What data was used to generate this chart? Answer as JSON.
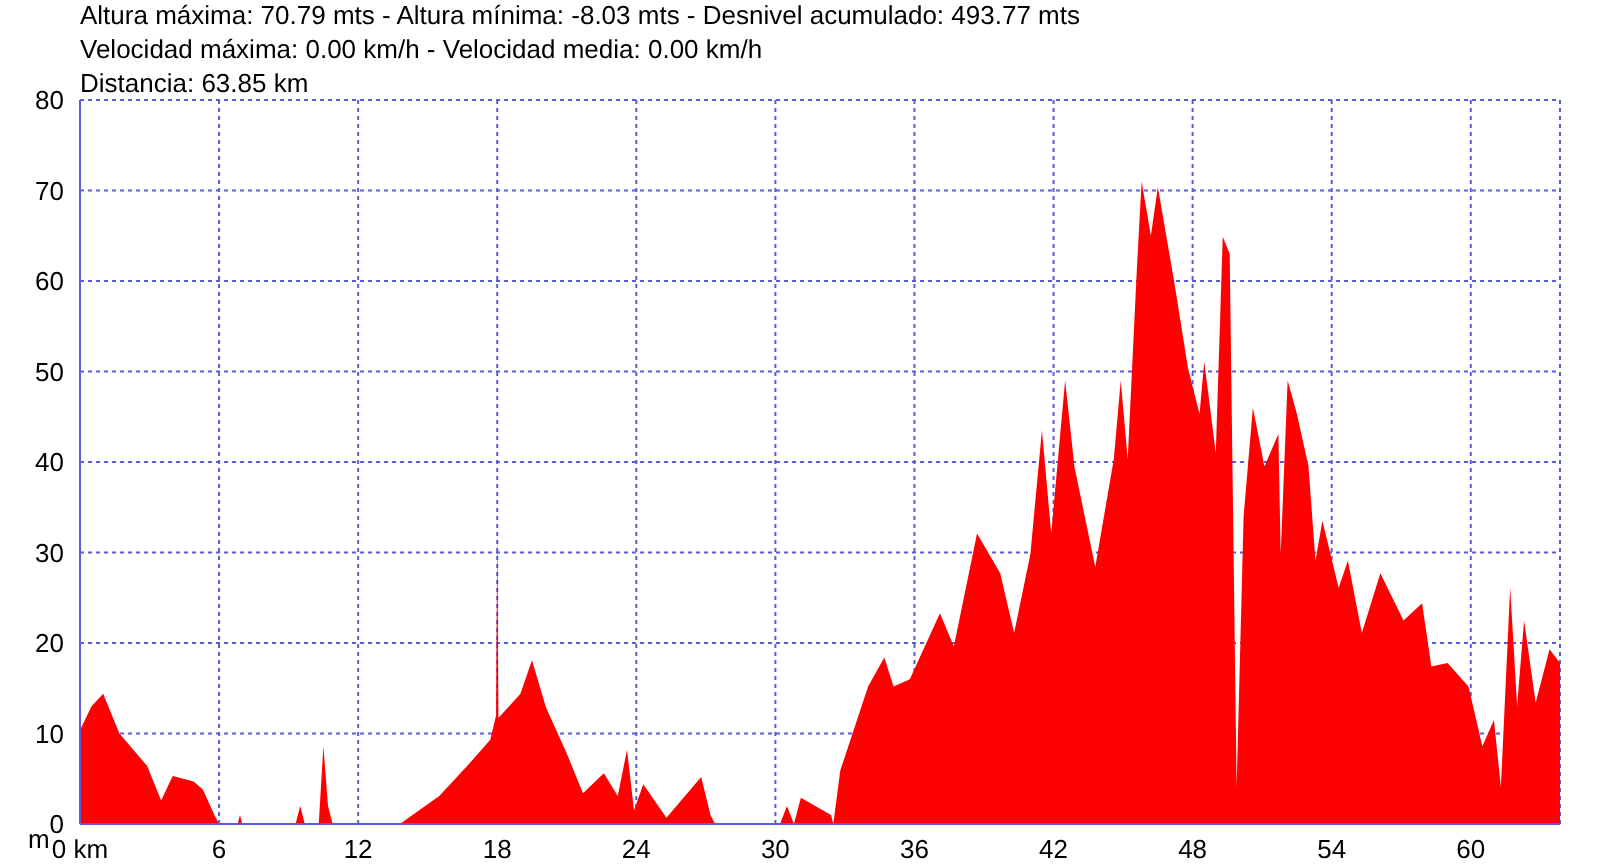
{
  "chart_data": {
    "type": "area",
    "title": "Altura máxima: 70.79 mts - Altura mínima: -8.03 mts - Desnivel acumulado: 493.77 mts",
    "subtitle": "Velocidad máxima: 0.00 km/h - Velocidad media: 0.00 km/h",
    "annotations": [
      "Distancia: 63.85 km"
    ],
    "ylabel": "m",
    "x": [
      0,
      0.5,
      1.0,
      1.7,
      2.9,
      3.5,
      4.0,
      4.9,
      5.3,
      5.8,
      6.0,
      6.8,
      6.9,
      7.0,
      9.3,
      9.5,
      9.7,
      10.3,
      10.5,
      10.7,
      10.9,
      11.0,
      13.8,
      15.5,
      16.7,
      17.7,
      17.95,
      18.0,
      18.05,
      19.0,
      19.5,
      20.1,
      21.0,
      21.7,
      22.6,
      23.2,
      23.6,
      23.9,
      24.3,
      25.3,
      26.1,
      26.8,
      27.2,
      27.4,
      30.2,
      30.5,
      30.8,
      31.1,
      32.4,
      32.5,
      32.8,
      34.0,
      34.7,
      35.1,
      35.8,
      37.1,
      37.7,
      38.7,
      39.7,
      40.3,
      41.0,
      41.5,
      41.9,
      42.5,
      42.9,
      43.8,
      44.6,
      44.9,
      45.2,
      45.6,
      45.8,
      46.2,
      46.5,
      47.2,
      47.8,
      48.3,
      48.5,
      49.0,
      49.3,
      49.6,
      49.9,
      50.2,
      50.6,
      51.1,
      51.7,
      51.8,
      52.1,
      52.5,
      53.0,
      53.3,
      53.6,
      54.3,
      54.7,
      55.3,
      56.1,
      57.1,
      57.9,
      58.3,
      59.0,
      59.9,
      60.5,
      61.0,
      61.3,
      61.7,
      62.0,
      62.3,
      62.8,
      63.4,
      63.85
    ],
    "values": [
      10.4,
      13,
      14.4,
      10,
      6.4,
      2.6,
      5.3,
      4.7,
      3.8,
      1,
      0,
      0,
      1,
      0,
      0,
      2,
      0,
      0,
      8.6,
      2,
      0,
      0,
      0,
      3.1,
      6.4,
      9.3,
      12,
      32.5,
      11.7,
      14.4,
      18.1,
      12.9,
      7.8,
      3.4,
      5.6,
      3.1,
      8.2,
      1.5,
      4.4,
      0.7,
      3.1,
      5.2,
      1,
      0,
      0,
      2,
      0,
      2.9,
      1,
      0,
      5.9,
      15.2,
      18.4,
      15.2,
      16,
      23.3,
      19.6,
      32.1,
      27.7,
      21.1,
      29.8,
      43.5,
      32.1,
      49,
      39.5,
      28.4,
      40.3,
      49,
      40.3,
      61.6,
      71,
      65,
      70.4,
      60,
      50.4,
      45.3,
      51.1,
      41,
      64.9,
      63,
      4.1,
      34,
      46,
      39.5,
      43.1,
      29.8,
      49,
      45.3,
      39.5,
      29.1,
      33.5,
      26.1,
      29.1,
      21.1,
      27.7,
      22.5,
      24.4,
      17.4,
      17.8,
      15.2,
      8.6,
      11.5,
      4.1,
      26.1,
      13,
      22.5,
      13.4,
      19.3,
      17.8
    ],
    "color": "#ff0000",
    "xlim": [
      0,
      63.85
    ],
    "xticks": [
      {
        "value": 0,
        "label": "0 km"
      },
      6,
      12,
      18,
      24,
      30,
      36,
      42,
      48,
      54,
      60
    ],
    "ylim": [
      0,
      80
    ],
    "yticks": [
      0,
      10,
      20,
      30,
      40,
      50,
      60,
      70,
      80
    ],
    "grid": true
  }
}
